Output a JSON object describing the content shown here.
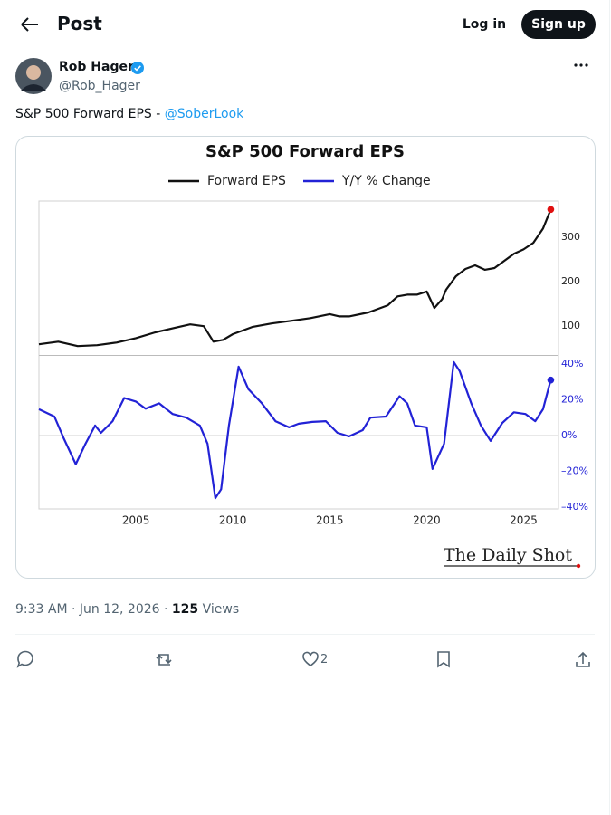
{
  "header": {
    "title": "Post",
    "login": "Log in",
    "signup": "Sign up"
  },
  "post": {
    "author": "Rob Hager",
    "handle": "@Rob_Hager",
    "text": "S&P 500 Forward EPS -",
    "mention": "@SoberLook",
    "timestamp": "9:33 AM · Jun 12, 2026 ·",
    "views": 125,
    "views_label": "Views",
    "likes": 2
  },
  "source": "The Daily Shot",
  "chart_data": [
    {
      "type": "line",
      "title": "S&P 500 Forward EPS",
      "x": [
        2000.0,
        2001.0,
        2002.0,
        2003.0,
        2004.0,
        2005.0,
        2006.0,
        2007.0,
        2007.8,
        2008.5,
        2009.0,
        2009.5,
        2010.0,
        2011.0,
        2012.0,
        2013.0,
        2014.0,
        2015.0,
        2015.5,
        2016.0,
        2017.0,
        2018.0,
        2018.5,
        2019.0,
        2019.5,
        2020.0,
        2020.4,
        2020.8,
        2021.0,
        2021.5,
        2022.0,
        2022.5,
        2023.0,
        2023.5,
        2024.0,
        2024.5,
        2025.0,
        2025.5,
        2026.0,
        2026.4
      ],
      "series": [
        {
          "name": "Forward EPS",
          "color": "#111111",
          "end_marker_color": "#e01010",
          "values": [
            59,
            65,
            55,
            57,
            63,
            73,
            86,
            96,
            104,
            100,
            65,
            69,
            82,
            98,
            106,
            112,
            118,
            127,
            122,
            122,
            131,
            147,
            167,
            171,
            171,
            178,
            141,
            161,
            182,
            212,
            229,
            237,
            227,
            231,
            247,
            263,
            273,
            288,
            320,
            363
          ]
        }
      ],
      "xlim": [
        2000,
        2026.8
      ],
      "ylim": [
        35,
        382
      ],
      "yticks": [
        100,
        200,
        300
      ],
      "tick_color": "#222222",
      "grid": false
    },
    {
      "type": "line",
      "x": [
        2000.0,
        2000.8,
        2001.3,
        2001.9,
        2002.4,
        2002.9,
        2003.2,
        2003.8,
        2004.4,
        2005.0,
        2005.5,
        2006.2,
        2006.9,
        2007.6,
        2008.3,
        2008.7,
        2009.1,
        2009.4,
        2009.8,
        2010.3,
        2010.8,
        2011.5,
        2012.2,
        2012.9,
        2013.4,
        2014.1,
        2014.8,
        2015.4,
        2016.0,
        2016.7,
        2017.1,
        2017.9,
        2018.6,
        2019.0,
        2019.4,
        2020.0,
        2020.3,
        2020.9,
        2021.4,
        2021.7,
        2022.3,
        2022.8,
        2023.3,
        2023.9,
        2024.5,
        2025.1,
        2025.6,
        2026.0,
        2026.4
      ],
      "series": [
        {
          "name": "Y/Y % Change",
          "color": "#2222d6",
          "end_marker_color": "#2222d6",
          "values": [
            14.7,
            10.6,
            -2,
            -16,
            -4.6,
            5.6,
            1.5,
            8,
            21,
            19,
            15,
            18,
            12,
            10,
            5.6,
            -4.6,
            -35,
            -30,
            5.6,
            38.5,
            26,
            18,
            8,
            4.6,
            6.6,
            7.6,
            8,
            1.5,
            -0.5,
            3,
            10,
            10.6,
            22,
            18,
            5.6,
            4.6,
            -18.7,
            -4.6,
            41,
            36,
            18,
            5.6,
            -3,
            7,
            13,
            12,
            8,
            14.7,
            31
          ]
        }
      ],
      "xlim": [
        2000,
        2026.8
      ],
      "ylim": [
        -41,
        44.5
      ],
      "yticks": [
        {
          "value": 40,
          "label": "40%"
        },
        {
          "value": 20,
          "label": "20%"
        },
        {
          "value": 0,
          "label": "0%"
        },
        {
          "value": -20,
          "label": "–20%"
        },
        {
          "value": -40,
          "label": "–40%"
        }
      ],
      "xticks": [
        2005,
        2010,
        2015,
        2020,
        2025
      ],
      "tick_color": "#2222d6",
      "grid": false,
      "zero_line": true
    }
  ]
}
